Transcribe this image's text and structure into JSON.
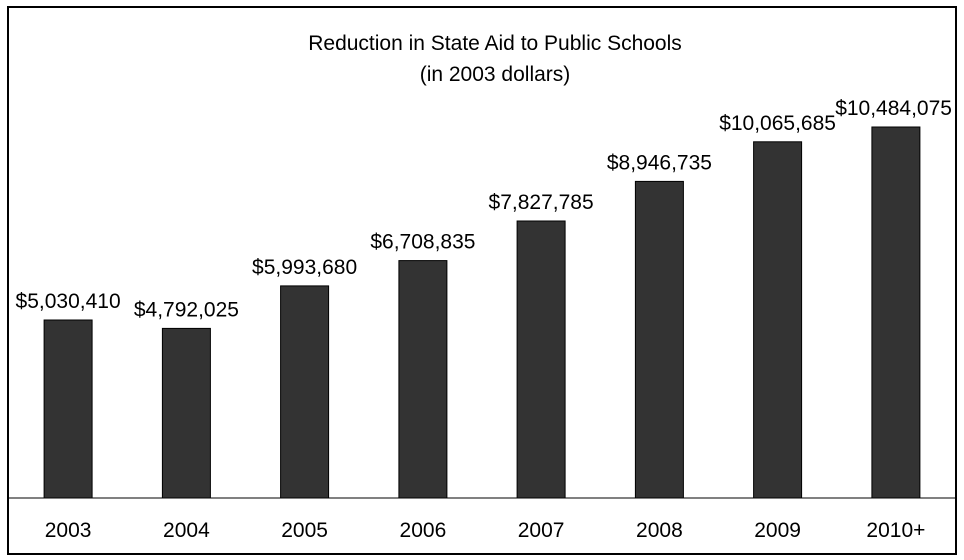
{
  "colors": {
    "bar_fill": "#333333",
    "bar_stroke": "#000000",
    "axis": "#000000",
    "background": "#ffffff"
  },
  "chart_data": {
    "type": "bar",
    "title": "Reduction in State Aid to Public Schools",
    "subtitle": "(in 2003 dollars)",
    "xlabel": "",
    "ylabel": "",
    "categories": [
      "2003",
      "2004",
      "2005",
      "2006",
      "2007",
      "2008",
      "2009",
      "2010+"
    ],
    "values": [
      5030410,
      4792025,
      5993680,
      6708835,
      7827785,
      8946735,
      10065685,
      10484075
    ],
    "data_labels": [
      "$5,030,410",
      "$4,792,025",
      "$5,993,680",
      "$6,708,835",
      "$7,827,785",
      "$8,946,735",
      "$10,065,685",
      "$10,484,075"
    ],
    "ylim": [
      0,
      13000000
    ],
    "grid": false,
    "legend": "none"
  }
}
